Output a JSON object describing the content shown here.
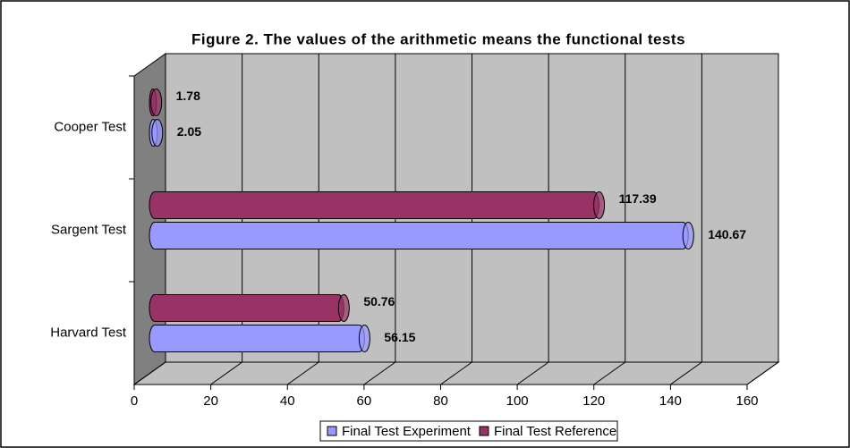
{
  "chart_data": {
    "type": "bar",
    "orientation": "horizontal",
    "title": "Figure 2. The values of the arithmetic means the functional tests",
    "categories": [
      "Cooper Test",
      "Sargent Test",
      "Harvard Test"
    ],
    "series": [
      {
        "name": "Final Test Experiment",
        "color": "#9999ff",
        "values": [
          2.05,
          140.67,
          56.15
        ]
      },
      {
        "name": "Final Test Reference",
        "color": "#993366",
        "values": [
          1.78,
          117.39,
          50.76
        ]
      }
    ],
    "xlim": [
      0,
      160
    ],
    "xticks": [
      0,
      20,
      40,
      60,
      80,
      100,
      120,
      140,
      160
    ],
    "grid": true,
    "legend": "bottom"
  }
}
